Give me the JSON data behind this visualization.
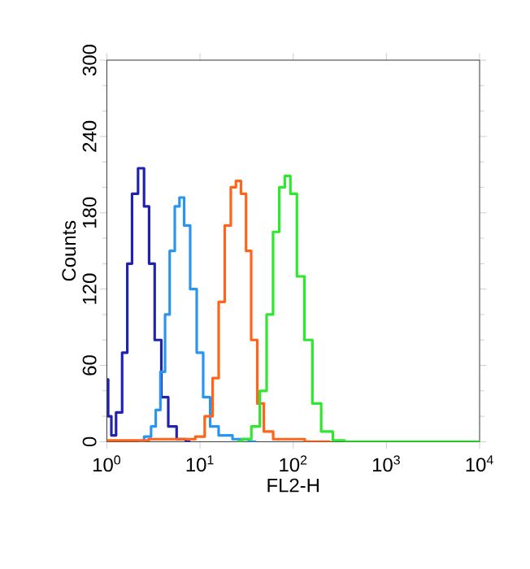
{
  "chart_data": {
    "type": "step",
    "xlabel": "FL2-H",
    "ylabel": "Counts",
    "log": "x",
    "xlim": [
      1,
      10000
    ],
    "xticks": [
      {
        "value": 1,
        "label": "10$^{0}$"
      },
      {
        "value": 10,
        "label": "10$^{1}$"
      },
      {
        "value": 100,
        "label": "10$^{2}$"
      },
      {
        "value": 1000,
        "label": "10$^{3}$"
      },
      {
        "value": 10000,
        "label": "10$^{4}$"
      }
    ],
    "ylim": [
      0,
      300
    ],
    "yticks": [
      0,
      60,
      120,
      180,
      240,
      300
    ],
    "grid": false,
    "series": [
      {
        "color": "#2222b0",
        "x": [
          1.0,
          1.07,
          1.17,
          1.35,
          1.58,
          1.74,
          2.0,
          2.34,
          2.69,
          3.0,
          3.55,
          4.17,
          5.0,
          6.3,
          7.9
        ],
        "values": [
          49,
          20,
          5,
          23,
          70,
          140,
          195,
          215,
          185,
          140,
          80,
          35,
          12,
          2,
          0
        ]
      },
      {
        "color": "#2a95f0",
        "x": [
          2.24,
          2.82,
          3.16,
          3.55,
          3.98,
          4.47,
          5.0,
          5.75,
          6.3,
          7.24,
          8.5,
          10,
          11.7,
          14.1,
          17.8,
          28,
          40
        ],
        "values": [
          0,
          4,
          12,
          25,
          55,
          100,
          150,
          185,
          192,
          170,
          120,
          70,
          35,
          12,
          5,
          2,
          0
        ]
      },
      {
        "color": "#ff6418",
        "x": [
          1.0,
          7.9,
          10,
          12.6,
          14.8,
          17,
          20,
          22.9,
          25.7,
          29.5,
          33,
          38,
          44.7,
          52.5,
          70.8,
          251
        ],
        "values": [
          1,
          2,
          4,
          20,
          50,
          110,
          170,
          200,
          205,
          195,
          150,
          80,
          30,
          8,
          2,
          0
        ]
      },
      {
        "color": "#2ee82e",
        "x": [
          25,
          31.6,
          40,
          48,
          56,
          66,
          76,
          87,
          100,
          120,
          145,
          178,
          224,
          316,
          400,
          10000
        ],
        "values": [
          0,
          2,
          12,
          40,
          100,
          165,
          200,
          209,
          195,
          130,
          80,
          30,
          8,
          1,
          0,
          0
        ]
      }
    ]
  }
}
